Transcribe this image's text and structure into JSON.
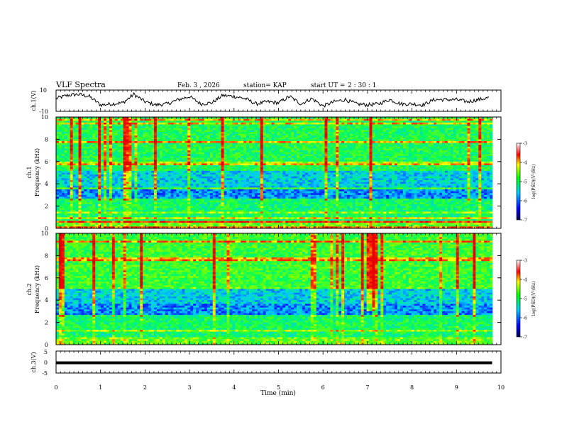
{
  "header": {
    "title": "VLF Spectra",
    "date": "Feb. 3 , 2026",
    "station": "station= KAP",
    "start_label": "start UT =",
    "start_time": "2 : 30 : 1"
  },
  "chart_data": [
    {
      "type": "line",
      "name": "ch1-waveform",
      "ylabel": "ch.1(V)",
      "ylim": [
        -10,
        10
      ],
      "yticks": [
        10,
        -10
      ],
      "xlim": [
        0,
        10
      ],
      "x": [
        0,
        0.25,
        0.5,
        0.75,
        1,
        1.25,
        1.5,
        1.75,
        2,
        2.25,
        2.5,
        2.75,
        3,
        3.25,
        3.5,
        3.75,
        4,
        4.25,
        4.5,
        4.75,
        5,
        5.25,
        5.5,
        5.75,
        6,
        6.25,
        6.5,
        6.75,
        7,
        7.25,
        7.5,
        7.75,
        8,
        8.25,
        8.5,
        8.75,
        9,
        9.25,
        9.5,
        9.75
      ],
      "values": [
        2,
        5,
        6,
        4,
        -4,
        -3,
        -2,
        6,
        -1,
        -4,
        -3,
        1,
        4,
        -3,
        -2,
        5,
        4,
        2,
        -3,
        -1,
        -2,
        4,
        -3,
        2,
        -5,
        -1,
        1,
        -3,
        -4,
        -3,
        1,
        -3,
        -3,
        -4,
        1,
        1,
        1,
        -1,
        1,
        3
      ]
    },
    {
      "type": "heatmap",
      "name": "ch1-spectrogram",
      "ylabel": "ch.1\nFrequency (kHz)",
      "xlim": [
        0,
        10
      ],
      "ylim": [
        0,
        10
      ],
      "yticks": [
        0,
        2,
        4,
        6,
        8,
        10
      ],
      "colorbar": {
        "label": "log(PSD)(V²/Hz)",
        "min": -7,
        "max": -3,
        "ticks": [
          -3,
          -4,
          -5,
          -6,
          -7
        ]
      }
    },
    {
      "type": "heatmap",
      "name": "ch2-spectrogram",
      "ylabel": "ch.2\nFrequency (kHz)",
      "xlim": [
        0,
        10
      ],
      "ylim": [
        0,
        10
      ],
      "yticks": [
        0,
        2,
        4,
        6,
        8,
        10
      ],
      "colorbar": {
        "label": "log(PSD)(V²/Hz)",
        "min": -7,
        "max": -3,
        "ticks": [
          -3,
          -4,
          -5,
          -6,
          -7
        ]
      }
    },
    {
      "type": "line",
      "name": "ch3-waveform",
      "ylabel": "ch.3(V)",
      "ylim": [
        -5,
        5
      ],
      "yticks": [
        5,
        0,
        -5
      ],
      "xlim": [
        0,
        10
      ],
      "level": [
        -1.0,
        0.3
      ]
    }
  ],
  "xaxis": {
    "label": "Time (min)",
    "ticks": [
      "0",
      "1",
      "2",
      "3",
      "4",
      "5",
      "6",
      "7",
      "8",
      "9",
      "10"
    ]
  },
  "ch1_axis": {
    "title": "ch.1",
    "unit": "Frequency (kHz)"
  },
  "ch2_axis": {
    "title": "ch.2",
    "unit": "Frequency (kHz)"
  },
  "colorbar_ticks": [
    "-3",
    "-4",
    "-5",
    "-6",
    "-7"
  ],
  "colorbar_label": "log(PSD)(V²/Hz)"
}
